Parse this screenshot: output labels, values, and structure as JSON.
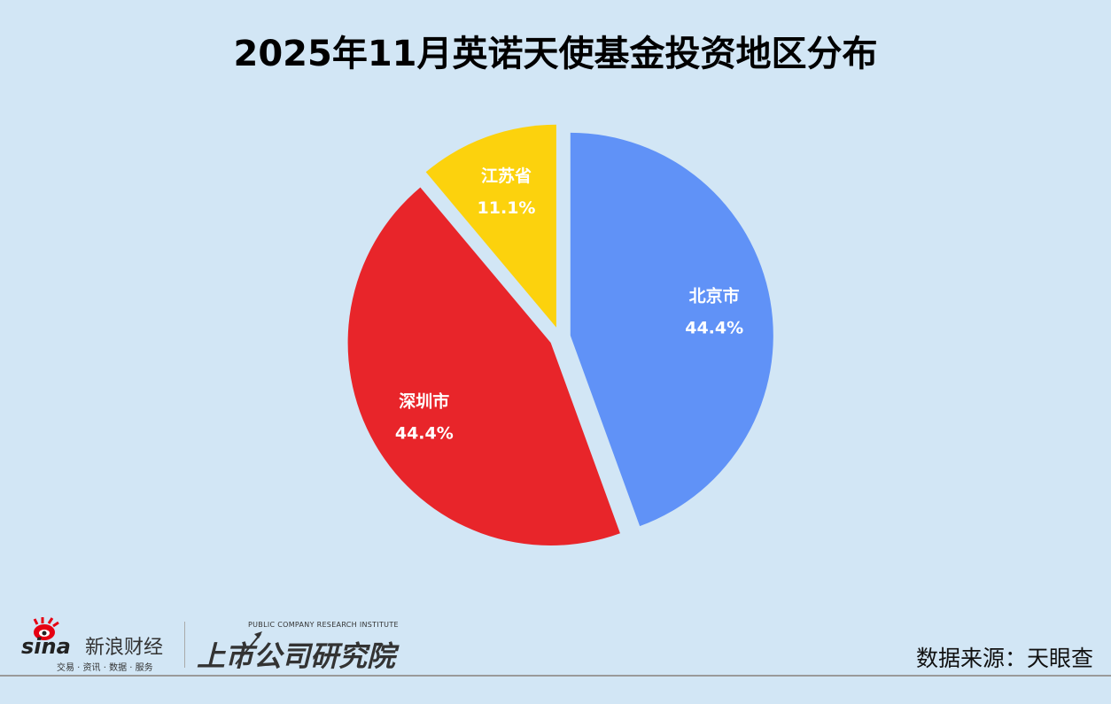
{
  "chart_data": {
    "type": "pie",
    "title": "2025年11月英诺天使基金投资地区分布",
    "slices": [
      {
        "label": "北京市",
        "value": 44.4,
        "display": "44.4%",
        "color": "#6092f7"
      },
      {
        "label": "深圳市",
        "value": 44.4,
        "display": "44.4%",
        "color": "#e8252a"
      },
      {
        "label": "江苏省",
        "value": 11.1,
        "display": "11.1%",
        "color": "#fcd20d"
      }
    ],
    "start_angle": "12 o'clock",
    "direction": "clockwise",
    "exploded": true
  },
  "footer": {
    "source": "数据来源：天眼查",
    "sina_logo": {
      "word": "sina",
      "name": "新浪财经",
      "tagline": "交易 · 资讯 · 数据 · 服务"
    },
    "institute_logo": {
      "name": "上市公司研究院",
      "english": "PUBLIC COMPANY RESEARCH INSTITUTE"
    }
  }
}
